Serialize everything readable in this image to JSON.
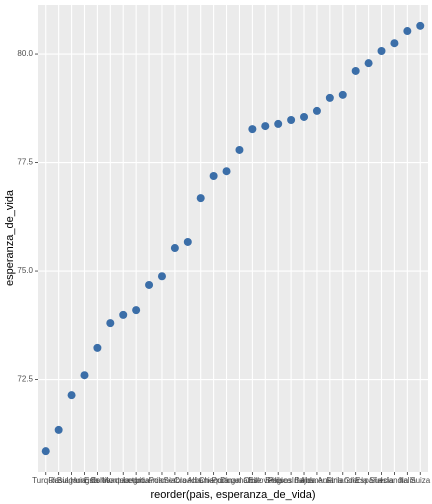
{
  "chart_data": {
    "type": "scatter",
    "x_label": "reorder(pais, esperanza_de_vida)",
    "y_label": "esperanza_de_vida",
    "categories": [
      "Turquía",
      "Rusia",
      "Bulgaria",
      "Hungría",
      "Estonia",
      "Eslovaquia",
      "Montenegro",
      "Letonia",
      "Lituania",
      "Polonia",
      "Serbia",
      "Croacia",
      "Albania",
      "Chequia",
      "Portugal",
      "Dinamarca",
      "Chile",
      "Eslovenia",
      "Bélgica",
      "Países Bajos",
      "Irlanda",
      "Alemania",
      "Austria",
      "Finlandia",
      "Grecia",
      "España",
      "Suecia",
      "Islandia",
      "Italia",
      "Suiza"
    ],
    "values": [
      70.85,
      71.34,
      72.14,
      72.6,
      73.23,
      73.8,
      73.99,
      74.1,
      74.68,
      74.88,
      75.53,
      75.67,
      76.68,
      77.19,
      77.3,
      77.79,
      78.27,
      78.34,
      78.39,
      78.48,
      78.55,
      78.69,
      78.99,
      79.06,
      79.61,
      79.79,
      80.07,
      80.25,
      80.53,
      80.65
    ],
    "color": "#3b6ea8",
    "ylim": [
      70.37,
      81.13
    ],
    "yticks": [
      72.5,
      {
        "value": 75,
        "label": "75.0"
      },
      77.5,
      {
        "value": 80,
        "label": "80.0"
      }
    ],
    "grid": true
  }
}
